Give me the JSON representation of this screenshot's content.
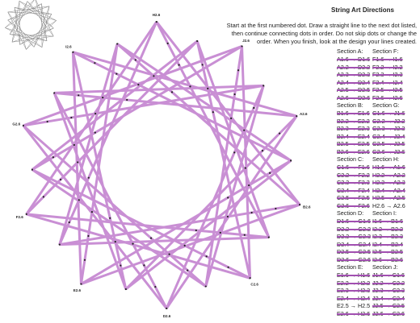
{
  "header": {
    "title": "String Art Directions",
    "instructions": "Start at the first numbered dot. Draw a straight line to the next dot listed, then continue connecting dots in order. Do not skip dots or change the order. When you finish, look at the design your lines created."
  },
  "figure": {
    "dot_labels": [
      "H2.6",
      "J2.6",
      "A2.6",
      "B2.6",
      "C2.6",
      "D2.6",
      "E2.6",
      "F2.6",
      "G2.6",
      "I2.6"
    ]
  },
  "columns": [
    [
      {
        "title": "Section A:",
        "steps": [
          {
            "text": "A1.6 → D1.6",
            "done": true
          },
          {
            "text": "A2.2 → D2.2",
            "done": true
          },
          {
            "text": "A2.3 → D2.3",
            "done": true
          },
          {
            "text": "A2.4 → D2.4",
            "done": true
          },
          {
            "text": "A2.5 → D2.5",
            "done": true
          },
          {
            "text": "A2.6 → D2.6",
            "done": true
          }
        ]
      },
      {
        "title": "Section B:",
        "steps": [
          {
            "text": "B1.6 → E1.6",
            "done": true
          },
          {
            "text": "B2.2 → E2.2",
            "done": true
          },
          {
            "text": "B2.3 → E2.3",
            "done": true
          },
          {
            "text": "B2.4 → E2.4",
            "done": true
          },
          {
            "text": "B2.5 → E2.5",
            "done": true
          },
          {
            "text": "B2.6 → E2.6",
            "done": true
          }
        ]
      },
      {
        "title": "Section C:",
        "steps": [
          {
            "text": "C1.6 → F1.6",
            "done": true
          },
          {
            "text": "C2.2 → F2.2",
            "done": true
          },
          {
            "text": "C2.3 → F2.3",
            "done": true
          },
          {
            "text": "C2.4 → F2.4",
            "done": true
          },
          {
            "text": "C2.5 → F2.5",
            "done": true
          },
          {
            "text": "C2.6 → F2.6",
            "done": true
          }
        ]
      },
      {
        "title": "Section D:",
        "steps": [
          {
            "text": "D1.6 → G1.6",
            "done": true
          },
          {
            "text": "D2.2 → G2.2",
            "done": true
          },
          {
            "text": "D2.3 → G2.3",
            "done": true
          },
          {
            "text": "D2.4 → G2.4",
            "done": true
          },
          {
            "text": "D2.5 → G2.5",
            "done": true
          },
          {
            "text": "D2.6 → G2.6",
            "done": true
          }
        ]
      },
      {
        "title": "Section E:",
        "steps": [
          {
            "text": "E1.6 → H1.6",
            "done": true
          },
          {
            "text": "E2.2 → H2.2",
            "done": true
          },
          {
            "text": "E2.3 → H2.3",
            "done": true
          },
          {
            "text": "E2.4 → H2.4",
            "done": true
          },
          {
            "text": "E2.5 → H2.5",
            "done": false
          },
          {
            "text": "E2.6 → H2.6",
            "done": true
          }
        ]
      }
    ],
    [
      {
        "title": "Section F:",
        "steps": [
          {
            "text": "F1.6 → I1.6",
            "done": true
          },
          {
            "text": "F2.2 → I2.2",
            "done": true
          },
          {
            "text": "F2.3 → I2.3",
            "done": true
          },
          {
            "text": "F2.4 → I2.4",
            "done": true
          },
          {
            "text": "F2.5 → I2.5",
            "done": true
          },
          {
            "text": "F2.6 → I2.6",
            "done": true
          }
        ]
      },
      {
        "title": "Section G:",
        "steps": [
          {
            "text": "G1.6 → J1.6",
            "done": true
          },
          {
            "text": "G2.2 → J2.2",
            "done": true
          },
          {
            "text": "G2.3 → J2.3",
            "done": true
          },
          {
            "text": "G2.4 → J2.4",
            "done": true
          },
          {
            "text": "G2.5 → J2.5",
            "done": true
          },
          {
            "text": "G2.6 → J2.6",
            "done": true
          }
        ]
      },
      {
        "title": "Section H:",
        "steps": [
          {
            "text": "H1.6 → A1.6",
            "done": true
          },
          {
            "text": "H2.2 → A2.2",
            "done": true
          },
          {
            "text": "H2.3 → A2.3",
            "done": true
          },
          {
            "text": "H2.4 → A2.4",
            "done": true
          },
          {
            "text": "H2.5 → A2.5",
            "done": true
          },
          {
            "text": "H2.6 → A2.6",
            "done": false
          }
        ]
      },
      {
        "title": "Section I:",
        "steps": [
          {
            "text": "I1.6 → B1.6",
            "done": true
          },
          {
            "text": "I2.2 → B2.2",
            "done": true
          },
          {
            "text": "I2.3 → B2.3",
            "done": true
          },
          {
            "text": "I2.4 → B2.4",
            "done": true
          },
          {
            "text": "I2.5 → B2.5",
            "done": true
          },
          {
            "text": "I2.6 → B2.6",
            "done": true
          }
        ]
      },
      {
        "title": "Section J:",
        "steps": [
          {
            "text": "J1.6 → C1.6",
            "done": true
          },
          {
            "text": "J2.2 → C2.2",
            "done": true
          },
          {
            "text": "J2.3 → C2.3",
            "done": true
          },
          {
            "text": "J2.4 → C2.4",
            "done": true
          },
          {
            "text": "J2.5 → C2.5",
            "done": true
          },
          {
            "text": "J2.6 → C2.6",
            "done": true
          }
        ]
      }
    ]
  ]
}
